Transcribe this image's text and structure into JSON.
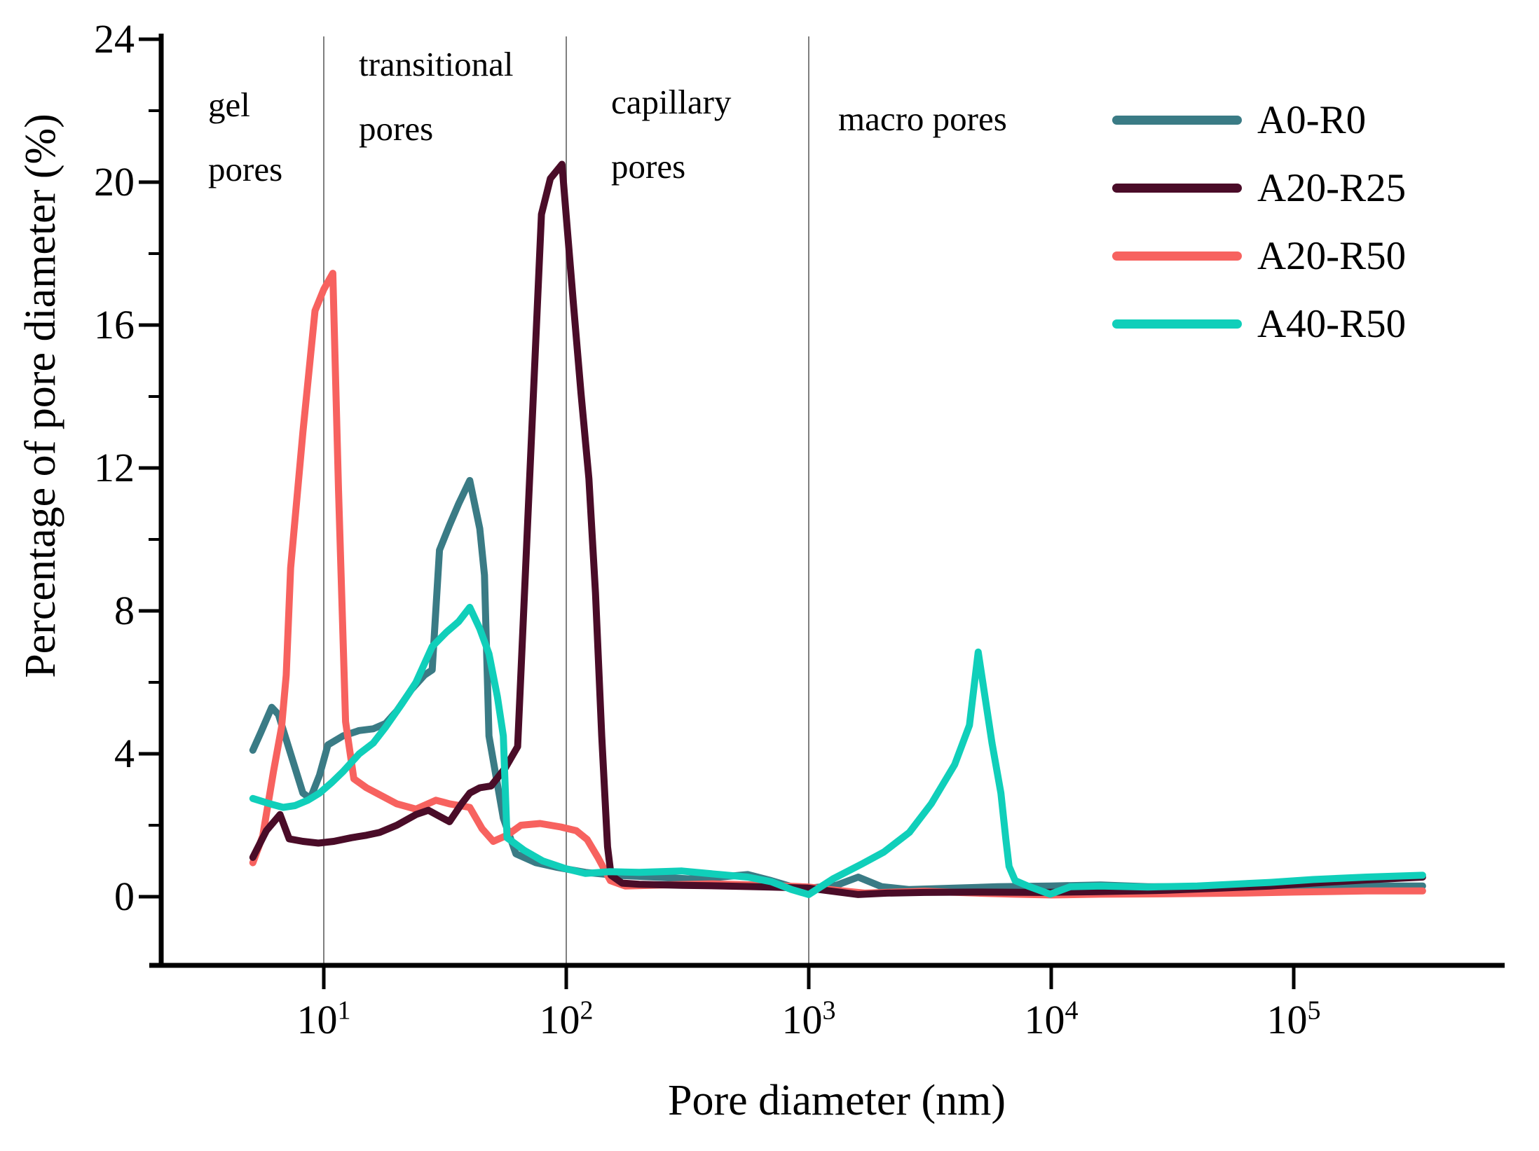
{
  "figure": {
    "background": "#ffffff",
    "axis_color": "#000000",
    "gridline_color": "#7f7f7f"
  },
  "chart_data": {
    "type": "line",
    "title": "",
    "xlabel": "Pore diameter (nm)",
    "ylabel": "Percentage of pore diameter (%)",
    "x_scale": "log10",
    "xlim": [
      2.1,
      740000
    ],
    "ylim": [
      -1.9,
      24.2
    ],
    "yticks": [
      0,
      4,
      8,
      12,
      16,
      20,
      24
    ],
    "yticks_minor": [
      2,
      6,
      10,
      14,
      18,
      22
    ],
    "xticks": [
      10,
      100,
      1000,
      10000,
      100000
    ],
    "gridlines_x": [
      10,
      100,
      1000
    ],
    "grid": "vertical gray lines at 10, 100, 1000 only",
    "legend_position": "upper right, no frame",
    "annotations": [
      {
        "line1": "gel",
        "line2": "pores",
        "zone": "< 10 nm"
      },
      {
        "line1": "transitional",
        "line2": "pores",
        "zone": "10-100 nm"
      },
      {
        "line1": "capillary",
        "line2": "pores",
        "zone": "100-1000 nm"
      },
      {
        "line1": "macro pores",
        "line2": "",
        "zone": "> 1000 nm"
      }
    ],
    "series": [
      {
        "name": "A0-R0",
        "color": "#3a7b85",
        "points": [
          [
            5.1,
            4.1
          ],
          [
            5.5,
            4.6
          ],
          [
            6.1,
            5.3
          ],
          [
            6.5,
            5.1
          ],
          [
            7.3,
            4.0
          ],
          [
            8.2,
            2.9
          ],
          [
            8.8,
            2.75
          ],
          [
            9.6,
            3.4
          ],
          [
            10.4,
            4.25
          ],
          [
            12,
            4.5
          ],
          [
            14,
            4.65
          ],
          [
            16,
            4.7
          ],
          [
            18,
            4.85
          ],
          [
            20,
            5.2
          ],
          [
            23,
            5.8
          ],
          [
            26,
            6.2
          ],
          [
            28,
            6.35
          ],
          [
            30,
            9.7
          ],
          [
            33,
            10.4
          ],
          [
            36,
            11.0
          ],
          [
            40,
            11.65
          ],
          [
            44,
            10.3
          ],
          [
            46,
            9.0
          ],
          [
            48,
            4.5
          ],
          [
            55,
            2.2
          ],
          [
            62,
            1.2
          ],
          [
            75,
            0.95
          ],
          [
            92,
            0.82
          ],
          [
            120,
            0.68
          ],
          [
            160,
            0.6
          ],
          [
            230,
            0.55
          ],
          [
            320,
            0.5
          ],
          [
            430,
            0.55
          ],
          [
            560,
            0.62
          ],
          [
            700,
            0.45
          ],
          [
            850,
            0.28
          ],
          [
            1000,
            0.24
          ],
          [
            1300,
            0.32
          ],
          [
            1600,
            0.55
          ],
          [
            2000,
            0.28
          ],
          [
            2600,
            0.2
          ],
          [
            4000,
            0.24
          ],
          [
            6000,
            0.28
          ],
          [
            10000,
            0.3
          ],
          [
            16000,
            0.33
          ],
          [
            25000,
            0.28
          ],
          [
            50000,
            0.27
          ],
          [
            100000,
            0.28
          ],
          [
            200000,
            0.3
          ],
          [
            340000,
            0.3
          ]
        ]
      },
      {
        "name": "A20-R25",
        "color": "#4a0c28",
        "points": [
          [
            5.1,
            1.1
          ],
          [
            5.8,
            1.85
          ],
          [
            6.6,
            2.3
          ],
          [
            7.2,
            1.62
          ],
          [
            8.2,
            1.55
          ],
          [
            9.5,
            1.5
          ],
          [
            11,
            1.55
          ],
          [
            13,
            1.65
          ],
          [
            15,
            1.72
          ],
          [
            17,
            1.8
          ],
          [
            20,
            2.0
          ],
          [
            24,
            2.3
          ],
          [
            27,
            2.42
          ],
          [
            30,
            2.25
          ],
          [
            33,
            2.1
          ],
          [
            37,
            2.6
          ],
          [
            40,
            2.9
          ],
          [
            44,
            3.05
          ],
          [
            49,
            3.1
          ],
          [
            56,
            3.6
          ],
          [
            63,
            4.2
          ],
          [
            79,
            19.1
          ],
          [
            86,
            20.1
          ],
          [
            96,
            20.5
          ],
          [
            107,
            16.6
          ],
          [
            115,
            14.1
          ],
          [
            124,
            11.7
          ],
          [
            132,
            8.5
          ],
          [
            140,
            4.5
          ],
          [
            148,
            1.4
          ],
          [
            153,
            0.6
          ],
          [
            170,
            0.38
          ],
          [
            200,
            0.35
          ],
          [
            300,
            0.32
          ],
          [
            450,
            0.3
          ],
          [
            700,
            0.27
          ],
          [
            1000,
            0.24
          ],
          [
            1300,
            0.14
          ],
          [
            1600,
            0.06
          ],
          [
            2100,
            0.1
          ],
          [
            3000,
            0.12
          ],
          [
            5000,
            0.13
          ],
          [
            9000,
            0.12
          ],
          [
            15000,
            0.14
          ],
          [
            30000,
            0.18
          ],
          [
            50000,
            0.24
          ],
          [
            80000,
            0.3
          ],
          [
            120000,
            0.38
          ],
          [
            200000,
            0.47
          ],
          [
            340000,
            0.55
          ]
        ]
      },
      {
        "name": "A20-R50",
        "color": "#f7625f",
        "points": [
          [
            5.1,
            0.95
          ],
          [
            5.6,
            1.7
          ],
          [
            6.2,
            3.5
          ],
          [
            6.7,
            4.75
          ],
          [
            7.0,
            6.2
          ],
          [
            7.3,
            9.2
          ],
          [
            8.2,
            13.0
          ],
          [
            9.2,
            16.4
          ],
          [
            10,
            17.0
          ],
          [
            10.9,
            17.45
          ],
          [
            11.5,
            11.4
          ],
          [
            12.3,
            4.9
          ],
          [
            13.3,
            3.3
          ],
          [
            15,
            3.05
          ],
          [
            16.5,
            2.9
          ],
          [
            20,
            2.6
          ],
          [
            24,
            2.45
          ],
          [
            29,
            2.7
          ],
          [
            33,
            2.6
          ],
          [
            40,
            2.5
          ],
          [
            45,
            1.9
          ],
          [
            50,
            1.55
          ],
          [
            57,
            1.72
          ],
          [
            65,
            2.0
          ],
          [
            78,
            2.05
          ],
          [
            95,
            1.95
          ],
          [
            110,
            1.85
          ],
          [
            122,
            1.6
          ],
          [
            135,
            1.1
          ],
          [
            152,
            0.45
          ],
          [
            175,
            0.3
          ],
          [
            250,
            0.33
          ],
          [
            400,
            0.36
          ],
          [
            600,
            0.33
          ],
          [
            800,
            0.3
          ],
          [
            1000,
            0.27
          ],
          [
            1300,
            0.18
          ],
          [
            1700,
            0.1
          ],
          [
            2300,
            0.13
          ],
          [
            3000,
            0.15
          ],
          [
            5000,
            0.1
          ],
          [
            7000,
            0.07
          ],
          [
            10000,
            0.05
          ],
          [
            16000,
            0.07
          ],
          [
            30000,
            0.08
          ],
          [
            60000,
            0.1
          ],
          [
            100000,
            0.13
          ],
          [
            200000,
            0.16
          ],
          [
            340000,
            0.16
          ]
        ]
      },
      {
        "name": "A40-R50",
        "color": "#10cfba",
        "points": [
          [
            5.1,
            2.75
          ],
          [
            6.0,
            2.6
          ],
          [
            6.8,
            2.5
          ],
          [
            7.6,
            2.55
          ],
          [
            8.6,
            2.7
          ],
          [
            9.6,
            2.9
          ],
          [
            10.8,
            3.2
          ],
          [
            12,
            3.5
          ],
          [
            14,
            4.0
          ],
          [
            16,
            4.3
          ],
          [
            18,
            4.75
          ],
          [
            21,
            5.4
          ],
          [
            24,
            6.0
          ],
          [
            28,
            7.0
          ],
          [
            32,
            7.4
          ],
          [
            36,
            7.7
          ],
          [
            40,
            8.1
          ],
          [
            44,
            7.5
          ],
          [
            48,
            6.8
          ],
          [
            52,
            5.6
          ],
          [
            55,
            4.5
          ],
          [
            57,
            1.65
          ],
          [
            67,
            1.3
          ],
          [
            80,
            1.0
          ],
          [
            100,
            0.78
          ],
          [
            120,
            0.65
          ],
          [
            150,
            0.7
          ],
          [
            200,
            0.68
          ],
          [
            300,
            0.72
          ],
          [
            430,
            0.62
          ],
          [
            560,
            0.55
          ],
          [
            700,
            0.42
          ],
          [
            850,
            0.2
          ],
          [
            1000,
            0.06
          ],
          [
            1260,
            0.5
          ],
          [
            1660,
            0.92
          ],
          [
            2040,
            1.25
          ],
          [
            2600,
            1.8
          ],
          [
            3200,
            2.6
          ],
          [
            4000,
            3.7
          ],
          [
            4600,
            4.8
          ],
          [
            5000,
            6.85
          ],
          [
            5700,
            4.3
          ],
          [
            6200,
            2.9
          ],
          [
            6500,
            1.6
          ],
          [
            6700,
            0.85
          ],
          [
            7100,
            0.45
          ],
          [
            8000,
            0.3
          ],
          [
            9900,
            0.07
          ],
          [
            12000,
            0.28
          ],
          [
            16000,
            0.3
          ],
          [
            25000,
            0.27
          ],
          [
            40000,
            0.3
          ],
          [
            80000,
            0.4
          ],
          [
            120000,
            0.48
          ],
          [
            200000,
            0.55
          ],
          [
            340000,
            0.6
          ]
        ]
      }
    ]
  }
}
